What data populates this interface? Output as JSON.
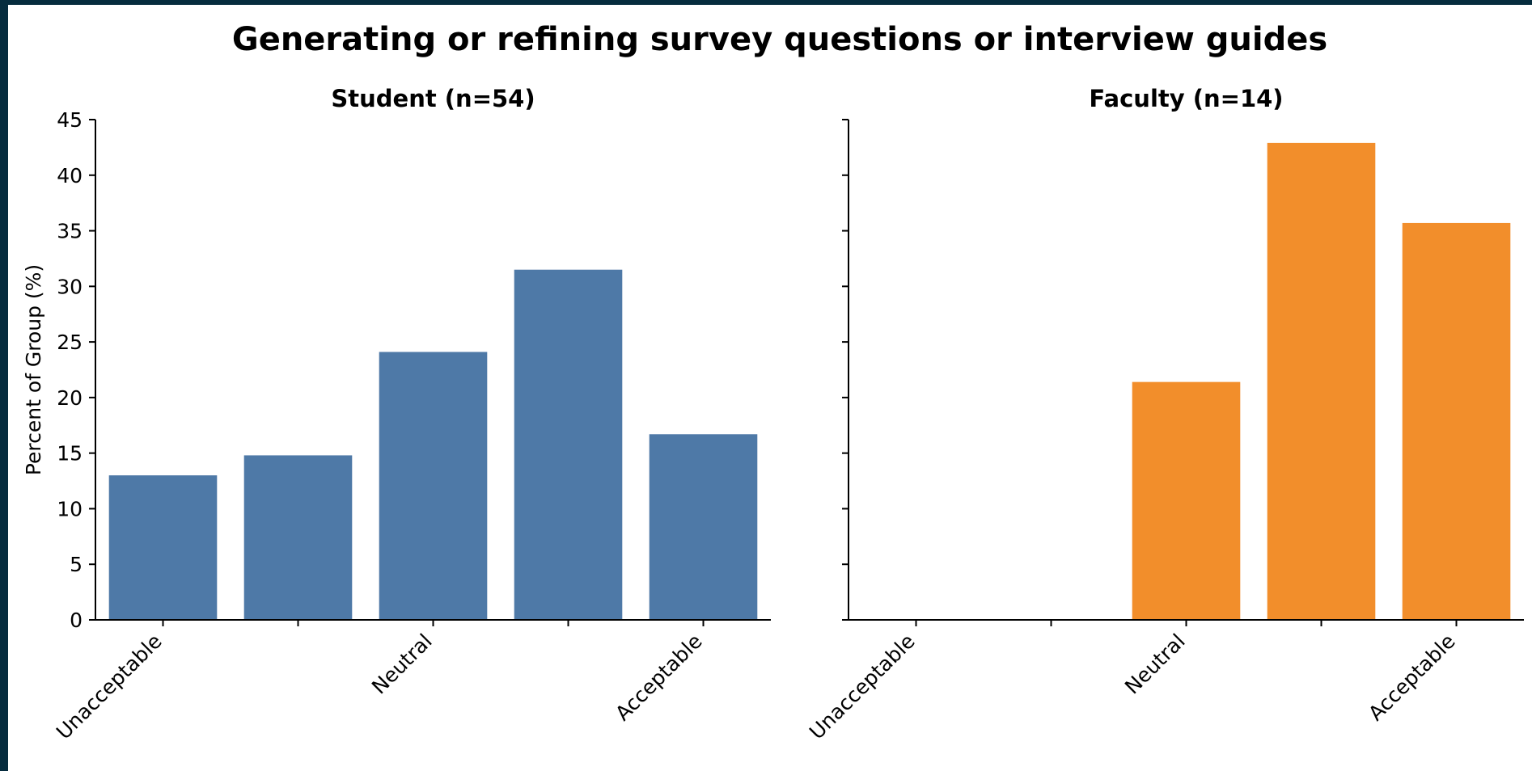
{
  "figure": {
    "title": "Generating or refining survey questions or interview guides",
    "background": "#ffffff",
    "frame_color": "#062c3e"
  },
  "chart_data": [
    {
      "type": "bar",
      "title": "Student (n=54)",
      "ylabel": "Percent of Group (%)",
      "xlabel": "",
      "categories": [
        "1",
        "2",
        "3",
        "4",
        "5"
      ],
      "tick_labels": [
        "Unacceptable",
        "",
        "Neutral",
        "",
        "Acceptable"
      ],
      "values": [
        13.0,
        14.8,
        24.1,
        31.5,
        16.7
      ],
      "color": "#4e79a7",
      "ylim": [
        0,
        45
      ],
      "yticks": [
        0,
        5,
        10,
        15,
        20,
        25,
        30,
        35,
        40,
        45
      ],
      "show_ytick_labels": true,
      "grid": false
    },
    {
      "type": "bar",
      "title": "Faculty (n=14)",
      "ylabel": "",
      "xlabel": "",
      "categories": [
        "1",
        "2",
        "3",
        "4",
        "5"
      ],
      "tick_labels": [
        "Unacceptable",
        "",
        "Neutral",
        "",
        "Acceptable"
      ],
      "values": [
        0,
        0,
        21.4,
        42.9,
        35.7
      ],
      "color": "#f28e2b",
      "ylim": [
        0,
        45
      ],
      "yticks": [
        0,
        5,
        10,
        15,
        20,
        25,
        30,
        35,
        40,
        45
      ],
      "show_ytick_labels": false,
      "grid": false
    }
  ]
}
